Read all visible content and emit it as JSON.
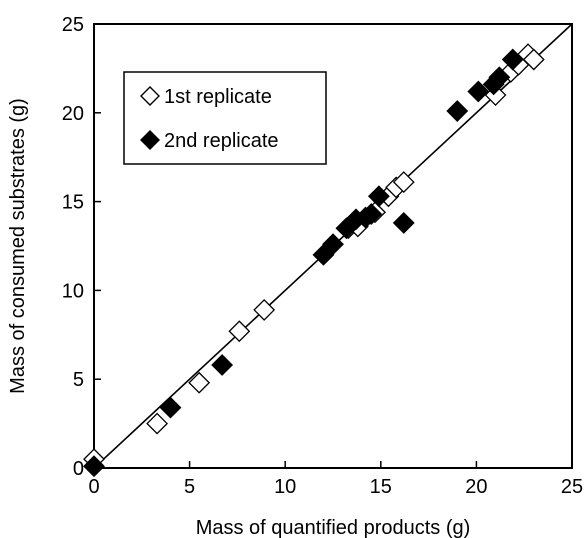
{
  "chart_data": {
    "type": "scatter",
    "xlabel": "Mass of quantified products (g)",
    "ylabel": "Mass of consumed substrates (g)",
    "xlim": [
      0,
      25
    ],
    "ylim": [
      0,
      25
    ],
    "x_ticks": [
      "0",
      "5",
      "10",
      "15",
      "20",
      "25"
    ],
    "y_ticks": [
      "0",
      "5",
      "10",
      "15",
      "20",
      "25"
    ],
    "grid": false,
    "legend_position": "top-left",
    "reference_line": {
      "from": [
        0,
        0
      ],
      "to": [
        25,
        25
      ],
      "color": "#000000"
    },
    "series": [
      {
        "name": "1st replicate",
        "marker": "open-diamond",
        "color": "#000000",
        "points": [
          [
            0,
            0.5
          ],
          [
            3.3,
            2.5
          ],
          [
            5.5,
            4.8
          ],
          [
            7.6,
            7.7
          ],
          [
            8.9,
            8.9
          ],
          [
            13.3,
            13.5
          ],
          [
            13.8,
            13.6
          ],
          [
            14.7,
            14.4
          ],
          [
            15.4,
            15.3
          ],
          [
            15.8,
            15.8
          ],
          [
            16.2,
            16.1
          ],
          [
            21.0,
            21.0
          ],
          [
            21.8,
            22.3
          ],
          [
            22.2,
            22.7
          ],
          [
            22.7,
            23.3
          ],
          [
            23.0,
            23.0
          ]
        ]
      },
      {
        "name": "2nd replicate",
        "marker": "filled-diamond",
        "color": "#000000",
        "points": [
          [
            0,
            0.1
          ],
          [
            4.0,
            3.4
          ],
          [
            6.7,
            5.8
          ],
          [
            12.0,
            12.0
          ],
          [
            12.5,
            12.6
          ],
          [
            13.2,
            13.5
          ],
          [
            13.7,
            14.0
          ],
          [
            14.2,
            14.1
          ],
          [
            14.5,
            14.3
          ],
          [
            14.9,
            15.3
          ],
          [
            16.2,
            13.8
          ],
          [
            19.0,
            20.1
          ],
          [
            20.1,
            21.2
          ],
          [
            20.9,
            21.6
          ],
          [
            21.2,
            22.0
          ],
          [
            21.9,
            23.0
          ]
        ]
      }
    ]
  }
}
